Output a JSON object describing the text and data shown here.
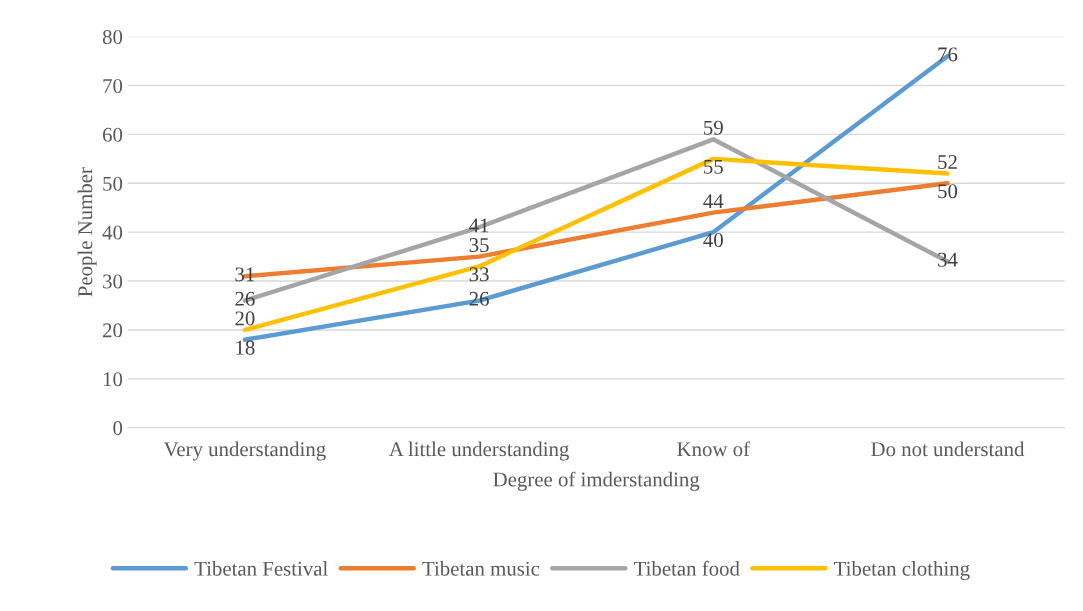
{
  "chart_data": {
    "type": "line",
    "xlabel": "Degree of imderstanding",
    "ylabel": "People Number",
    "categories": [
      "Very understanding",
      "A little understanding",
      "Know of",
      "Do not understand"
    ],
    "series": [
      {
        "name": "Tibetan Festival",
        "color": "#5b9bd5",
        "values": [
          18,
          26,
          40,
          76
        ]
      },
      {
        "name": "Tibetan music",
        "color": "#ed7d31",
        "values": [
          31,
          35,
          44,
          50
        ]
      },
      {
        "name": "Tibetan food",
        "color": "#a5a5a5",
        "values": [
          26,
          41,
          59,
          34
        ]
      },
      {
        "name": "Tibetan clothing",
        "color": "#ffc000",
        "values": [
          20,
          33,
          55,
          52
        ]
      }
    ],
    "ylim": [
      0,
      80
    ],
    "yticks": [
      0,
      10,
      20,
      30,
      40,
      50,
      60,
      70,
      80
    ],
    "grid": "y",
    "legend": "bottom",
    "data_labels": true,
    "marker": "none",
    "line_style": "solid"
  }
}
